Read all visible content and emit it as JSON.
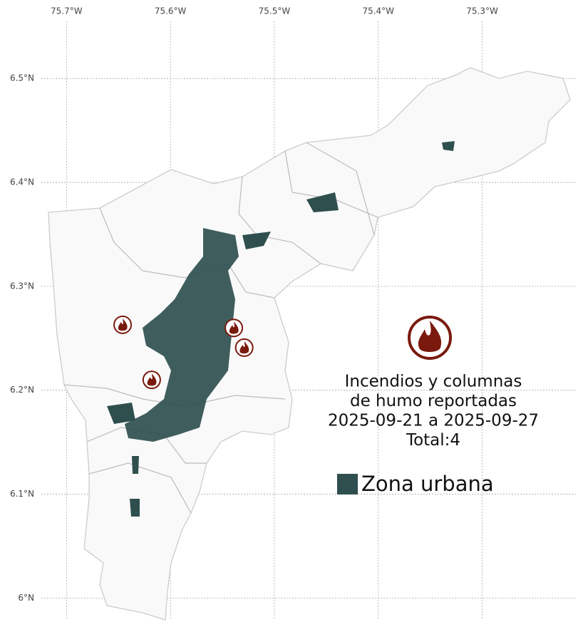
{
  "chart_data": {
    "type": "map",
    "title_lines": [
      "Incendios y columnas",
      "de humo reportadas",
      "2025-09-21 a 2025-09-27",
      "Total:4"
    ],
    "legend_label": "Zona urbana",
    "urban_color": "#2f4f4f",
    "fire_color": "#7a1a0e",
    "xlim": [
      -75.764,
      -75.203
    ],
    "ylim": [
      5.979,
      6.555
    ],
    "xticks": [
      {
        "value": -75.7,
        "label": "75.7°W"
      },
      {
        "value": -75.6,
        "label": "75.6°W"
      },
      {
        "value": -75.5,
        "label": "75.5°W"
      },
      {
        "value": -75.4,
        "label": "75.4°W"
      },
      {
        "value": -75.3,
        "label": "75.3°W"
      }
    ],
    "yticks": [
      {
        "value": 6.5,
        "label": "6.5°N"
      },
      {
        "value": 6.4,
        "label": "6.4°N"
      },
      {
        "value": 6.3,
        "label": "6.3°N"
      },
      {
        "value": 6.2,
        "label": "6.2°N"
      },
      {
        "value": 6.1,
        "label": "6.1°N"
      },
      {
        "value": 6,
        "label": "6°N"
      }
    ],
    "grid": true,
    "points": [
      {
        "lon": -75.646,
        "lat": 6.263
      },
      {
        "lon": -75.539,
        "lat": 6.26
      },
      {
        "lon": -75.529,
        "lat": 6.241
      },
      {
        "lon": -75.618,
        "lat": 6.21
      }
    ]
  }
}
